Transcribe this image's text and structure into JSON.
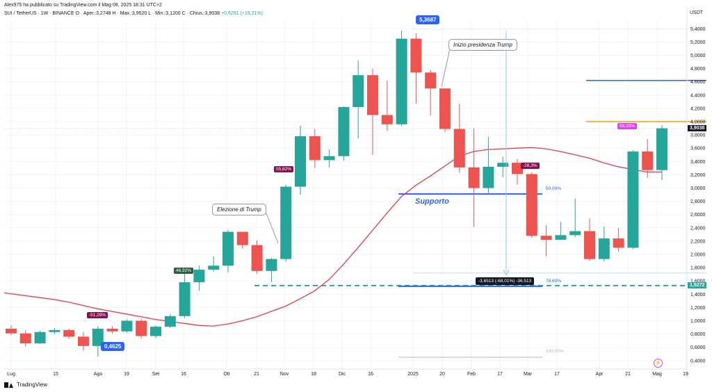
{
  "header": {
    "published_line": "Alex975 ha pubblicato su TradingView.com il Mag 08, 2025 18:31 UTC+2",
    "symbol_line_prefix": "SUI / TetherUS · 1W · BINANCE  O · Aper.:3,2748  H · Max.:3,9520  L · Min.:3,1200  C · Chius.:3,9038",
    "symbol_line_change": "+0,6291 (+19,21%)"
  },
  "price_axis": {
    "currency": "USDT",
    "ticks": [
      "5,4000",
      "5,2000",
      "5,0000",
      "4,8000",
      "4,6000",
      "4,4000",
      "4,2000",
      "4,0000",
      "3,8000",
      "3,6000",
      "3,4000",
      "3,2000",
      "3,0000",
      "2,8000",
      "2,6000",
      "2,4000",
      "2,2000",
      "2,0000",
      "1,8000",
      "1,6000",
      "1,4000",
      "1,2000",
      "1,0000",
      "0,8000",
      "0,6000",
      "0,4000"
    ],
    "last_price_tag": "3,9038",
    "support_price_tag": "1,5272"
  },
  "time_axis": {
    "labels": [
      "Lug",
      "15",
      "Ago",
      "19",
      "Set",
      "16",
      "Ott",
      "21",
      "Nov",
      "18",
      "Dic",
      "16",
      "2025",
      "20",
      "Feb",
      "17",
      "Mar",
      "17",
      "Apr",
      "21",
      "Mag",
      "19"
    ]
  },
  "annotations": {
    "high_pill": "5,3687",
    "low_pill": "0,4625",
    "callout_trump_presidency": "Inizio presidenza Trump",
    "callout_trump_election": "Elezione di Trump",
    "support_label": "Supporto",
    "fib_50": "50,00%",
    "fib_786": "78,60%",
    "fib_100": "100,00%",
    "measure": "-3,6513 (-68,01%) -36.513",
    "pct_labels": [
      "-51,29%",
      "46,92%",
      "55,82%",
      "-28,3%",
      "68,35%"
    ],
    "lightning_icon": "lightning-icon"
  },
  "footer": {
    "brand": "TradingView"
  },
  "colors": {
    "up": "#26a69a",
    "down": "#ef5350",
    "ma": "#f23645",
    "support": "#2962ff",
    "orange": "#ff9800"
  },
  "chart_data": {
    "type": "candlestick",
    "timeframe": "1W",
    "ylim": [
      0.3,
      5.6
    ],
    "candles": [
      {
        "o": 0.88,
        "h": 0.93,
        "l": 0.78,
        "c": 0.81
      },
      {
        "o": 0.81,
        "h": 0.86,
        "l": 0.61,
        "c": 0.66
      },
      {
        "o": 0.66,
        "h": 0.85,
        "l": 0.65,
        "c": 0.83
      },
      {
        "o": 0.83,
        "h": 0.89,
        "l": 0.8,
        "c": 0.86
      },
      {
        "o": 0.86,
        "h": 0.88,
        "l": 0.73,
        "c": 0.76
      },
      {
        "o": 0.76,
        "h": 0.83,
        "l": 0.55,
        "c": 0.62
      },
      {
        "o": 0.62,
        "h": 0.92,
        "l": 0.46,
        "c": 0.88
      },
      {
        "o": 0.88,
        "h": 0.92,
        "l": 0.81,
        "c": 0.84
      },
      {
        "o": 0.84,
        "h": 1.02,
        "l": 0.82,
        "c": 1.0
      },
      {
        "o": 1.0,
        "h": 1.03,
        "l": 0.73,
        "c": 0.77
      },
      {
        "o": 0.77,
        "h": 0.93,
        "l": 0.74,
        "c": 0.91
      },
      {
        "o": 0.91,
        "h": 1.1,
        "l": 0.89,
        "c": 1.07
      },
      {
        "o": 1.07,
        "h": 1.72,
        "l": 1.04,
        "c": 1.58
      },
      {
        "o": 1.58,
        "h": 1.83,
        "l": 1.45,
        "c": 1.77
      },
      {
        "o": 1.77,
        "h": 1.97,
        "l": 1.74,
        "c": 1.83
      },
      {
        "o": 1.83,
        "h": 2.37,
        "l": 1.73,
        "c": 2.34
      },
      {
        "o": 2.34,
        "h": 2.33,
        "l": 2.09,
        "c": 2.14
      },
      {
        "o": 2.14,
        "h": 2.21,
        "l": 1.71,
        "c": 1.75
      },
      {
        "o": 1.75,
        "h": 1.95,
        "l": 1.58,
        "c": 1.93
      },
      {
        "o": 1.93,
        "h": 3.05,
        "l": 1.89,
        "c": 3.02
      },
      {
        "o": 3.02,
        "h": 3.94,
        "l": 2.9,
        "c": 3.78
      },
      {
        "o": 3.78,
        "h": 3.89,
        "l": 3.3,
        "c": 3.42
      },
      {
        "o": 3.42,
        "h": 3.58,
        "l": 3.31,
        "c": 3.48
      },
      {
        "o": 3.48,
        "h": 4.23,
        "l": 3.41,
        "c": 4.22
      },
      {
        "o": 4.22,
        "h": 4.92,
        "l": 3.75,
        "c": 4.7
      },
      {
        "o": 4.7,
        "h": 4.8,
        "l": 3.5,
        "c": 4.1
      },
      {
        "o": 4.1,
        "h": 4.62,
        "l": 3.86,
        "c": 3.96
      },
      {
        "o": 3.96,
        "h": 5.37,
        "l": 3.93,
        "c": 5.25
      },
      {
        "o": 5.25,
        "h": 5.33,
        "l": 4.27,
        "c": 4.74
      },
      {
        "o": 4.74,
        "h": 4.78,
        "l": 4.09,
        "c": 4.5
      },
      {
        "o": 4.5,
        "h": 4.5,
        "l": 3.84,
        "c": 3.89
      },
      {
        "o": 3.89,
        "h": 4.27,
        "l": 3.23,
        "c": 3.31
      },
      {
        "o": 3.31,
        "h": 3.9,
        "l": 2.41,
        "c": 3.0
      },
      {
        "o": 3.0,
        "h": 3.77,
        "l": 2.91,
        "c": 3.32
      },
      {
        "o": 3.32,
        "h": 3.47,
        "l": 3.16,
        "c": 3.38
      },
      {
        "o": 3.38,
        "h": 3.44,
        "l": 3.05,
        "c": 3.21
      },
      {
        "o": 3.21,
        "h": 3.24,
        "l": 2.25,
        "c": 2.28
      },
      {
        "o": 2.28,
        "h": 2.44,
        "l": 1.97,
        "c": 2.22
      },
      {
        "o": 2.22,
        "h": 2.49,
        "l": 2.22,
        "c": 2.29
      },
      {
        "o": 2.29,
        "h": 2.84,
        "l": 2.26,
        "c": 2.35
      },
      {
        "o": 2.35,
        "h": 2.54,
        "l": 1.9,
        "c": 1.93
      },
      {
        "o": 1.93,
        "h": 2.42,
        "l": 1.89,
        "c": 2.24
      },
      {
        "o": 2.24,
        "h": 2.4,
        "l": 2.04,
        "c": 2.1
      },
      {
        "o": 2.1,
        "h": 3.57,
        "l": 2.08,
        "c": 3.55
      },
      {
        "o": 3.55,
        "h": 3.74,
        "l": 3.15,
        "c": 3.27
      },
      {
        "o": 3.27,
        "h": 3.95,
        "l": 3.12,
        "c": 3.9
      }
    ],
    "moving_average": [
      1.32,
      1.28,
      1.23,
      1.18,
      1.14,
      1.1,
      1.06,
      1.02,
      0.99,
      0.96,
      0.93,
      0.92,
      0.95,
      1.0,
      1.06,
      1.14,
      1.22,
      1.33,
      1.45,
      1.62,
      1.85,
      2.1,
      2.36,
      2.62,
      2.87,
      3.04,
      3.18,
      3.33,
      3.48,
      3.55,
      3.58,
      3.59,
      3.6,
      3.61,
      3.59,
      3.55,
      3.5,
      3.45,
      3.38,
      3.32,
      3.28,
      3.24,
      3.24
    ],
    "levels": {
      "fib_50": 2.91,
      "support": 1.53,
      "fib_786": 1.72,
      "fib_100": 0.46,
      "orange": 4.0,
      "blue_top": 4.62,
      "high": 5.3687,
      "low": 0.4625
    }
  }
}
